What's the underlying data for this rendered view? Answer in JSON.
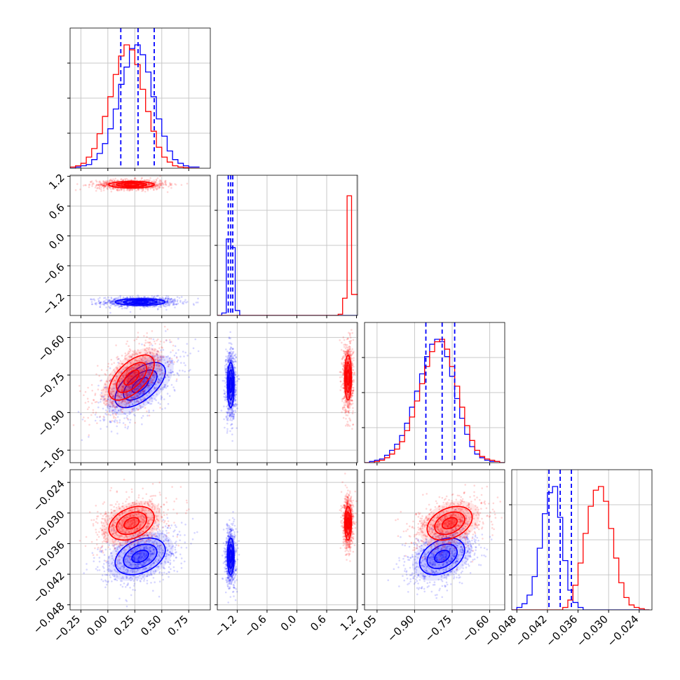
{
  "chart_data": {
    "type": "corner",
    "title": "",
    "parameters": [
      {
        "range": [
          -0.35,
          0.95
        ],
        "ticks": [
          -0.25,
          0.0,
          0.25,
          0.5,
          0.75
        ],
        "tick_labels": [
          "−0.25",
          "0.00",
          "0.25",
          "0.50",
          "0.75"
        ]
      },
      {
        "range": [
          -1.6,
          1.22
        ],
        "ticks": [
          -1.2,
          -0.6,
          0.0,
          0.6,
          1.2
        ],
        "tick_labels": [
          "−1.2",
          "−0.6",
          "0.0",
          "0.6",
          "1.2"
        ]
      },
      {
        "range": [
          -1.1,
          -0.54
        ],
        "ticks": [
          -1.05,
          -0.9,
          -0.75,
          -0.6
        ],
        "tick_labels": [
          "−1.05",
          "−0.90",
          "−0.75",
          "−0.60"
        ]
      },
      {
        "range": [
          -0.049,
          -0.0215
        ],
        "ticks": [
          -0.048,
          -0.042,
          -0.036,
          -0.03,
          -0.024
        ],
        "tick_labels": [
          "−0.048",
          "−0.042",
          "−0.036",
          "−0.030",
          "−0.024"
        ]
      }
    ],
    "series": [
      {
        "color": "#0000ff",
        "means": [
          0.3,
          -1.33,
          -0.79,
          -0.0385
        ],
        "sds": [
          0.155,
          0.045,
          0.06,
          0.0024
        ],
        "correlations": {
          "0-2": 0.6,
          "0-3": 0.35,
          "2-3": 0.35,
          "1-3": 0.0,
          "0-1": 0.0,
          "1-2": 0.0
        },
        "quantile_lines": [
          [
            0.12,
            0.28,
            0.43
          ],
          [
            -1.38,
            -1.33,
            -1.29
          ],
          [
            -0.855,
            -0.79,
            -0.74
          ],
          [
            -0.0417,
            -0.0395,
            -0.0373
          ]
        ]
      },
      {
        "color": "#ff0000",
        "means": [
          0.22,
          1.03,
          -0.76,
          -0.032
        ],
        "sds": [
          0.14,
          0.045,
          0.06,
          0.0022
        ],
        "correlations": {
          "0-2": 0.6,
          "0-3": 0.35,
          "2-3": 0.35,
          "1-3": 0.0,
          "0-1": 0.0,
          "1-2": 0.0
        }
      }
    ],
    "histograms": [
      {
        "param": 0,
        "bins": [
          -0.35,
          -0.3,
          -0.25,
          -0.2,
          -0.15,
          -0.1,
          -0.05,
          0.0,
          0.05,
          0.1,
          0.15,
          0.2,
          0.25,
          0.3,
          0.35,
          0.4,
          0.45,
          0.5,
          0.55,
          0.6,
          0.65,
          0.7,
          0.75,
          0.8,
          0.85
        ],
        "counts": [
          [
            0,
            0.01,
            0.02,
            0.03,
            0.07,
            0.12,
            0.2,
            0.32,
            0.48,
            0.68,
            0.82,
            0.97,
            1.0,
            0.92,
            0.78,
            0.58,
            0.4,
            0.26,
            0.14,
            0.07,
            0.04,
            0.02,
            0.01,
            0.01
          ],
          [
            0.01,
            0.02,
            0.04,
            0.09,
            0.16,
            0.28,
            0.42,
            0.58,
            0.76,
            0.91,
            1.0,
            0.96,
            0.84,
            0.64,
            0.46,
            0.3,
            0.17,
            0.09,
            0.05,
            0.02,
            0.01,
            0.005,
            0,
            0
          ]
        ]
      },
      {
        "param": 1,
        "bins": [
          -1.6,
          -1.51,
          -1.42,
          -1.33,
          -1.24,
          -1.15,
          -1.06,
          -0.97,
          -0.88,
          -0.79,
          -0.7,
          -0.61,
          -0.52,
          -0.43,
          -0.34,
          -0.25,
          -0.16,
          -0.07,
          0.02,
          0.11,
          0.2,
          0.29,
          0.38,
          0.47,
          0.56,
          0.65,
          0.74,
          0.83,
          0.92,
          1.01,
          1.1,
          1.19,
          1.22
        ],
        "counts": [
          [
            0,
            0.02,
            0.62,
            0.55,
            0.04,
            0,
            0,
            0,
            0,
            0,
            0,
            0,
            0,
            0,
            0,
            0,
            0,
            0,
            0,
            0,
            0,
            0,
            0,
            0,
            0,
            0,
            0,
            0,
            0,
            0,
            0,
            0
          ],
          [
            0,
            0,
            0,
            0,
            0,
            0,
            0,
            0,
            0,
            0,
            0,
            0,
            0,
            0,
            0,
            0,
            0,
            0,
            0,
            0,
            0,
            0,
            0,
            0,
            0,
            0,
            0,
            0.01,
            0.14,
            0.97,
            0.17,
            0.17
          ]
        ]
      },
      {
        "param": 2,
        "bins": [
          -1.1,
          -1.08,
          -1.06,
          -1.04,
          -1.02,
          -1.0,
          -0.98,
          -0.96,
          -0.94,
          -0.92,
          -0.9,
          -0.88,
          -0.86,
          -0.84,
          -0.82,
          -0.8,
          -0.78,
          -0.76,
          -0.74,
          -0.72,
          -0.7,
          -0.68,
          -0.66,
          -0.64,
          -0.62,
          -0.6,
          -0.58,
          -0.56,
          -0.54
        ],
        "counts": [
          [
            0,
            0.01,
            0.02,
            0.03,
            0.06,
            0.1,
            0.15,
            0.22,
            0.32,
            0.45,
            0.58,
            0.72,
            0.86,
            0.96,
            1.0,
            0.98,
            0.86,
            0.7,
            0.52,
            0.36,
            0.23,
            0.13,
            0.07,
            0.04,
            0.02,
            0.01,
            0.01,
            0
          ],
          [
            0,
            0,
            0.01,
            0.02,
            0.04,
            0.07,
            0.11,
            0.17,
            0.26,
            0.37,
            0.5,
            0.64,
            0.78,
            0.9,
            0.98,
            1.0,
            0.92,
            0.78,
            0.62,
            0.45,
            0.3,
            0.18,
            0.1,
            0.05,
            0.03,
            0.02,
            0.01,
            0
          ]
        ]
      },
      {
        "param": 3,
        "bins": [
          -0.049,
          -0.048,
          -0.047,
          -0.046,
          -0.045,
          -0.044,
          -0.043,
          -0.042,
          -0.041,
          -0.04,
          -0.039,
          -0.038,
          -0.037,
          -0.036,
          -0.035,
          -0.034,
          -0.033,
          -0.032,
          -0.031,
          -0.03,
          -0.029,
          -0.028,
          -0.027,
          -0.026,
          -0.025,
          -0.024,
          -0.023,
          -0.022
        ],
        "counts": [
          [
            0,
            0.02,
            0.05,
            0.12,
            0.27,
            0.5,
            0.78,
            0.95,
            1.0,
            0.75,
            0.4,
            0.16,
            0.06,
            0.02,
            0,
            0,
            0,
            0,
            0,
            0,
            0,
            0,
            0,
            0,
            0,
            0,
            0
          ],
          [
            0,
            0,
            0,
            0,
            0,
            0,
            0,
            0,
            0,
            0,
            0.02,
            0.08,
            0.2,
            0.38,
            0.62,
            0.84,
            0.97,
            1.0,
            0.88,
            0.66,
            0.42,
            0.22,
            0.1,
            0.04,
            0.02,
            0.01,
            0
          ]
        ]
      }
    ],
    "contour_levels": [
      0.5,
      1.0,
      1.5,
      2.0
    ],
    "xlabel": "",
    "ylabel": "",
    "grid": true,
    "legend": "none"
  }
}
